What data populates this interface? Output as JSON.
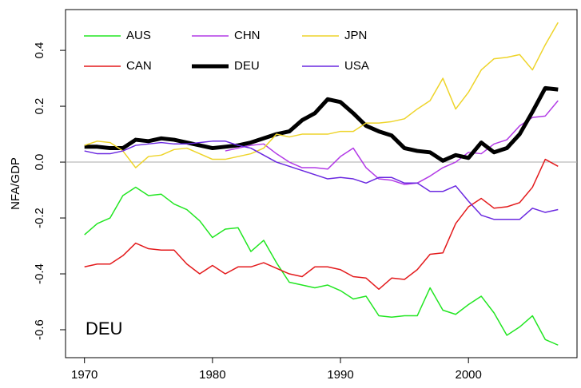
{
  "chart_data": {
    "type": "line",
    "ylabel": "NFA/GDP",
    "annotation": "DEU",
    "x": [
      1970,
      1971,
      1972,
      1973,
      1974,
      1975,
      1976,
      1977,
      1978,
      1979,
      1980,
      1981,
      1982,
      1983,
      1984,
      1985,
      1986,
      1987,
      1988,
      1989,
      1990,
      1991,
      1992,
      1993,
      1994,
      1995,
      1996,
      1997,
      1998,
      1999,
      2000,
      2001,
      2002,
      2003,
      2004,
      2005,
      2006,
      2007
    ],
    "xlim": [
      1968.52,
      2008.48
    ],
    "xticks": [
      1970,
      1980,
      1990,
      2000
    ],
    "ylim": [
      -0.7,
      0.546
    ],
    "yticks": [
      -0.6,
      -0.4,
      -0.2,
      {
        "value": 0,
        "label": "0.0"
      },
      0.2,
      0.4
    ],
    "hline": 0,
    "series": [
      {
        "name": "AUS",
        "color": "#22e622",
        "width": 1.5,
        "values": [
          -0.26,
          -0.22,
          -0.2,
          -0.12,
          -0.09,
          -0.12,
          -0.115,
          -0.15,
          -0.17,
          -0.21,
          -0.27,
          -0.24,
          -0.235,
          -0.32,
          -0.28,
          -0.36,
          -0.43,
          -0.44,
          -0.45,
          -0.44,
          -0.46,
          -0.49,
          -0.48,
          -0.55,
          -0.555,
          -0.55,
          -0.55,
          -0.45,
          -0.53,
          -0.545,
          -0.51,
          -0.48,
          -0.54,
          -0.62,
          -0.59,
          -0.55,
          -0.635,
          -0.655
        ]
      },
      {
        "name": "CAN",
        "color": "#e31a1c",
        "width": 1.5,
        "values": [
          -0.375,
          -0.365,
          -0.365,
          -0.335,
          -0.29,
          -0.31,
          -0.315,
          -0.315,
          -0.365,
          -0.4,
          -0.37,
          -0.4,
          -0.375,
          -0.375,
          -0.36,
          -0.38,
          -0.4,
          -0.41,
          -0.375,
          -0.375,
          -0.385,
          -0.41,
          -0.415,
          -0.455,
          -0.415,
          -0.42,
          -0.385,
          -0.33,
          -0.325,
          -0.22,
          -0.16,
          -0.13,
          -0.165,
          -0.16,
          -0.145,
          -0.09,
          0.01,
          -0.015
        ]
      },
      {
        "name": "CHN",
        "color": "#b23ae6",
        "width": 1.5,
        "values": [
          null,
          null,
          null,
          null,
          null,
          null,
          null,
          null,
          null,
          null,
          null,
          0.04,
          0.05,
          0.06,
          0.065,
          0.03,
          0.0,
          -0.02,
          -0.02,
          -0.025,
          0.02,
          0.05,
          -0.02,
          -0.06,
          -0.065,
          -0.08,
          -0.075,
          -0.05,
          -0.02,
          0.0,
          0.035,
          0.03,
          0.065,
          0.08,
          0.13,
          0.16,
          0.165,
          0.22
        ]
      },
      {
        "name": "DEU",
        "color": "#000000",
        "width": 5,
        "values": [
          0.055,
          0.055,
          0.05,
          0.05,
          0.08,
          0.075,
          0.085,
          0.08,
          0.07,
          0.06,
          0.05,
          0.055,
          0.06,
          0.07,
          0.085,
          0.1,
          0.11,
          0.15,
          0.175,
          0.225,
          0.215,
          0.175,
          0.13,
          0.11,
          0.095,
          0.05,
          0.04,
          0.035,
          0.005,
          0.025,
          0.015,
          0.07,
          0.035,
          0.05,
          0.1,
          0.18,
          0.265,
          0.26
        ]
      },
      {
        "name": "JPN",
        "color": "#eed42a",
        "width": 1.5,
        "values": [
          0.06,
          0.075,
          0.07,
          0.04,
          -0.02,
          0.02,
          0.025,
          0.045,
          0.05,
          0.03,
          0.01,
          0.01,
          0.02,
          0.03,
          0.05,
          0.1,
          0.09,
          0.1,
          0.1,
          0.1,
          0.11,
          0.11,
          0.14,
          0.14,
          0.145,
          0.155,
          0.19,
          0.22,
          0.3,
          0.19,
          0.25,
          0.33,
          0.37,
          0.375,
          0.385,
          0.33,
          0.42,
          0.5
        ]
      },
      {
        "name": "USA",
        "color": "#6a28e0",
        "width": 1.5,
        "values": [
          0.04,
          0.03,
          0.03,
          0.04,
          0.06,
          0.065,
          0.07,
          0.065,
          0.065,
          0.07,
          0.075,
          0.075,
          0.06,
          0.05,
          0.025,
          0.0,
          -0.015,
          -0.03,
          -0.045,
          -0.06,
          -0.055,
          -0.06,
          -0.075,
          -0.055,
          -0.055,
          -0.075,
          -0.075,
          -0.105,
          -0.105,
          -0.085,
          -0.14,
          -0.19,
          -0.205,
          -0.205,
          -0.205,
          -0.165,
          -0.18,
          -0.17
        ]
      }
    ]
  }
}
